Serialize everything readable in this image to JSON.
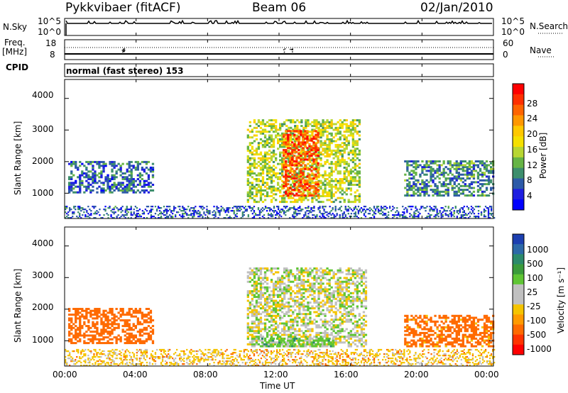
{
  "header": {
    "radar_title": "Pykkvibaer (fitACF)",
    "beam": "Beam 06",
    "date": "02/Jan/2010"
  },
  "nsky_panel": {
    "left_label": "N.Sky",
    "right_label": "N.Search",
    "left_ticks": [
      "10^5",
      "10^0"
    ],
    "right_ticks": [
      "10^5",
      "10^0"
    ]
  },
  "freq_panel": {
    "left_label_1": "Freq.",
    "left_label_2": "[MHz]",
    "right_label": "Nave",
    "left_ticks": [
      "18",
      "8"
    ],
    "right_ticks": [
      "60",
      "0"
    ]
  },
  "cpid_panel": {
    "label": "CPID",
    "mode_text": "normal (fast stereo) 153"
  },
  "power_panel": {
    "ylabel": "Slant Range [km]",
    "y_ticks": [
      "4000",
      "3000",
      "2000",
      "1000"
    ],
    "colorbar_label": "Power [dB]",
    "colorbar_ticks": [
      "28",
      "24",
      "20",
      "16",
      "12",
      "8",
      "4"
    ],
    "colorbar_colors": [
      "#ff0000",
      "#ff2f00",
      "#ff6400",
      "#ff9700",
      "#ffc800",
      "#f5e000",
      "#b7d632",
      "#66b445",
      "#3d8e6d",
      "#2d5aa8",
      "#1e1ee0",
      "#0000ff"
    ]
  },
  "velocity_panel": {
    "ylabel": "Slant Range [km]",
    "y_ticks": [
      "4000",
      "3000",
      "2000",
      "1000"
    ],
    "colorbar_label": "Velocity [m s⁻¹]",
    "colorbar_ticks": [
      "1000",
      "500",
      "100",
      "25",
      "-25",
      "-100",
      "-500",
      "-1000"
    ],
    "colorbar_colors": [
      "#1c3fb0",
      "#2d69a8",
      "#2c8a6b",
      "#3b9b3b",
      "#5fc534",
      "#c0c0c0",
      "#c0c0c0",
      "#f5c400",
      "#ff9a00",
      "#ff6a00",
      "#ff3300",
      "#ff0000"
    ]
  },
  "x_axis": {
    "label": "Time UT",
    "ticks": [
      "00:00",
      "04:00",
      "08:00",
      "12:00",
      "16:00",
      "20:00",
      "00:00"
    ]
  },
  "chart_data": {
    "type": "heatmap",
    "title": "Pykkvibaer (fitACF)  Beam 06  02/Jan/2010",
    "xlabel": "Time UT",
    "ylabel": "Slant Range [km]",
    "xlim_hours": [
      0,
      24
    ],
    "ylim_km": [
      200,
      4600
    ],
    "grid": false,
    "panels": [
      {
        "name": "Power [dB]",
        "colorbar_range": [
          0,
          30
        ],
        "echo_regions": [
          {
            "t_start": 0.2,
            "t_end": 5.0,
            "range_start_km": 1000,
            "range_end_km": 2000,
            "value": 6
          },
          {
            "t_start": 10.2,
            "t_end": 16.5,
            "range_start_km": 700,
            "range_end_km": 3300,
            "value": 14
          },
          {
            "t_start": 12.2,
            "t_end": 14.2,
            "range_start_km": 900,
            "range_end_km": 3000,
            "value": 26
          },
          {
            "t_start": 19.0,
            "t_end": 24.0,
            "range_start_km": 900,
            "range_end_km": 2000,
            "value": 8
          },
          {
            "t_start": 0.0,
            "t_end": 24.0,
            "range_start_km": 200,
            "range_end_km": 600,
            "value": 5
          }
        ]
      },
      {
        "name": "Velocity [m s-1]",
        "colorbar_range": [
          -1000,
          1000
        ],
        "echo_regions": [
          {
            "t_start": 0.2,
            "t_end": 5.0,
            "range_start_km": 900,
            "range_end_km": 2000,
            "value": -200
          },
          {
            "t_start": 10.2,
            "t_end": 16.8,
            "range_start_km": 800,
            "range_end_km": 3300,
            "value": 0
          },
          {
            "t_start": 11.0,
            "t_end": 15.0,
            "range_start_km": 800,
            "range_end_km": 1100,
            "value": 60
          },
          {
            "t_start": 19.0,
            "t_end": 24.0,
            "range_start_km": 800,
            "range_end_km": 1800,
            "value": -150
          },
          {
            "t_start": 0.0,
            "t_end": 24.0,
            "range_start_km": 200,
            "range_end_km": 700,
            "value": -60
          }
        ]
      }
    ]
  }
}
